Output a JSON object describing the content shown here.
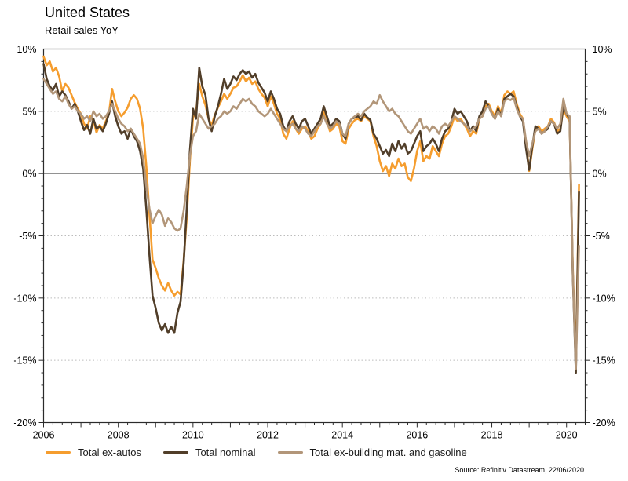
{
  "header": {
    "title": "United States",
    "subtitle": "Retail sales YoY"
  },
  "source": "Source: Refinitiv Datastream, 22/06/2020",
  "colors": {
    "ex_autos": "#F59D2E",
    "nominal": "#513E29",
    "ex_building": "#B29679",
    "grid": "#BCBCBC",
    "zero_line": "#6E6E6E",
    "axis": "#2B2B2B",
    "tick_text": "#000000"
  },
  "chart_data": {
    "type": "line",
    "title": "United States",
    "subtitle": "Retail sales YoY",
    "x_start": 2006.0,
    "x_step_months": 1,
    "xlim": [
      2006,
      2020.5
    ],
    "ylim": [
      -20,
      10
    ],
    "grid": "horizontal dotted at 5,-5,-10,-15; solid line at 0",
    "legend_position": "bottom-left",
    "yticks": [
      10,
      5,
      0,
      -5,
      -10,
      -15,
      -20
    ],
    "ytick_labels": [
      "10%",
      "5%",
      "0%",
      "-5%",
      "-10%",
      "-15%",
      "-20%"
    ],
    "xtick_label_years": [
      2006,
      2008,
      2010,
      2012,
      2014,
      2016,
      2018,
      2020
    ],
    "xtick_labels": [
      "2006",
      "2008",
      "2010",
      "2012",
      "2014",
      "2016",
      "2018",
      "2020"
    ],
    "series": [
      {
        "name": "Total ex-autos",
        "color": "#F59D2E",
        "values": [
          9.4,
          8.7,
          9.0,
          8.2,
          8.5,
          7.8,
          6.6,
          7.2,
          6.9,
          6.3,
          5.7,
          5.2,
          4.8,
          4.0,
          3.6,
          4.6,
          4.3,
          3.3,
          3.9,
          3.6,
          4.2,
          4.8,
          6.8,
          5.8,
          5.0,
          4.6,
          4.9,
          5.3,
          6.0,
          6.3,
          6.0,
          5.2,
          3.6,
          0.6,
          -3.2,
          -6.9,
          -7.6,
          -8.4,
          -9.0,
          -9.4,
          -8.8,
          -9.4,
          -9.8,
          -9.5,
          -9.7,
          -7.0,
          -3.5,
          1.0,
          4.5,
          5.0,
          7.2,
          6.2,
          5.5,
          4.4,
          3.9,
          4.7,
          5.3,
          5.8,
          6.4,
          6.0,
          6.4,
          6.9,
          7.0,
          7.4,
          7.9,
          7.4,
          7.7,
          7.2,
          7.4,
          6.8,
          6.4,
          6.1,
          5.4,
          6.2,
          5.6,
          4.8,
          4.4,
          3.2,
          2.8,
          3.6,
          4.2,
          3.6,
          3.2,
          3.6,
          3.8,
          3.4,
          2.8,
          3.0,
          3.6,
          4.0,
          5.0,
          4.2,
          3.4,
          3.6,
          4.0,
          3.8,
          2.6,
          2.4,
          3.6,
          4.0,
          4.3,
          4.4,
          4.2,
          4.6,
          4.4,
          4.2,
          3.0,
          2.2,
          1.0,
          0.2,
          0.6,
          -0.2,
          0.8,
          0.4,
          1.2,
          0.6,
          0.8,
          -0.3,
          -0.6,
          0.4,
          1.8,
          2.6,
          1.0,
          1.4,
          1.2,
          2.2,
          1.8,
          1.4,
          2.4,
          3.0,
          3.2,
          3.8,
          4.6,
          4.2,
          4.4,
          4.0,
          3.6,
          3.0,
          3.4,
          3.2,
          4.4,
          4.6,
          5.4,
          5.6,
          5.0,
          4.6,
          5.4,
          4.8,
          6.3,
          6.6,
          6.4,
          6.6,
          5.6,
          4.8,
          4.4,
          2.4,
          0.2,
          2.0,
          3.6,
          3.8,
          3.4,
          3.6,
          3.8,
          4.4,
          4.1,
          3.4,
          3.6,
          5.2,
          4.6,
          4.2,
          -7.5,
          -15.3,
          -0.9
        ]
      },
      {
        "name": "Total nominal",
        "color": "#513E29",
        "values": [
          8.8,
          7.6,
          7.0,
          6.7,
          7.2,
          6.2,
          6.6,
          6.3,
          5.8,
          5.2,
          5.6,
          5.0,
          4.2,
          3.5,
          3.9,
          3.2,
          4.4,
          3.6,
          3.8,
          3.4,
          4.0,
          4.8,
          5.8,
          4.6,
          3.8,
          3.2,
          3.4,
          2.8,
          3.6,
          3.0,
          2.6,
          1.8,
          0.4,
          -2.8,
          -6.5,
          -9.8,
          -10.8,
          -12.0,
          -12.6,
          -12.1,
          -12.8,
          -12.3,
          -12.8,
          -11.2,
          -10.3,
          -7.2,
          -2.8,
          1.8,
          5.2,
          4.4,
          8.5,
          7.0,
          6.3,
          4.4,
          3.4,
          4.6,
          5.4,
          6.4,
          7.6,
          6.8,
          7.2,
          7.8,
          7.5,
          8.0,
          8.3,
          8.0,
          8.2,
          7.7,
          8.0,
          7.3,
          6.9,
          6.5,
          5.8,
          6.6,
          6.0,
          5.2,
          4.8,
          3.8,
          3.4,
          4.2,
          4.6,
          4.0,
          3.6,
          4.2,
          4.4,
          3.8,
          3.2,
          3.6,
          4.0,
          4.4,
          5.4,
          4.6,
          3.8,
          4.0,
          4.4,
          4.2,
          3.2,
          2.8,
          4.0,
          4.4,
          4.5,
          4.6,
          4.3,
          4.8,
          4.5,
          4.3,
          3.2,
          2.8,
          2.2,
          1.6,
          1.9,
          1.4,
          2.4,
          1.8,
          2.6,
          2.0,
          2.4,
          1.6,
          1.8,
          2.4,
          3.0,
          3.4,
          1.8,
          2.2,
          2.4,
          2.8,
          2.4,
          1.8,
          2.8,
          3.4,
          3.6,
          4.2,
          5.2,
          4.8,
          5.0,
          4.6,
          4.2,
          3.4,
          3.8,
          3.4,
          4.6,
          5.0,
          5.8,
          5.4,
          4.8,
          4.4,
          5.2,
          4.6,
          6.0,
          6.2,
          6.4,
          6.2,
          5.4,
          4.6,
          4.2,
          2.0,
          0.3,
          2.2,
          3.8,
          3.6,
          3.2,
          3.4,
          3.6,
          4.2,
          4.0,
          3.2,
          3.4,
          5.5,
          4.8,
          4.4,
          -8.0,
          -16.0,
          -1.5
        ]
      },
      {
        "name": "Total ex-building mat. and gasoline",
        "color": "#B29679",
        "values": [
          7.6,
          7.2,
          6.8,
          6.4,
          6.6,
          6.0,
          5.8,
          6.2,
          5.6,
          5.2,
          5.4,
          5.0,
          4.8,
          4.4,
          4.6,
          4.2,
          5.0,
          4.6,
          4.8,
          4.4,
          4.6,
          5.0,
          5.6,
          5.0,
          4.4,
          4.0,
          3.8,
          3.4,
          3.6,
          3.2,
          2.8,
          2.4,
          1.2,
          -1.0,
          -2.8,
          -4.0,
          -3.4,
          -2.9,
          -3.3,
          -4.2,
          -3.6,
          -3.9,
          -4.4,
          -4.6,
          -4.4,
          -3.0,
          -1.0,
          1.4,
          3.0,
          3.4,
          4.8,
          4.4,
          4.0,
          3.6,
          3.8,
          4.0,
          4.4,
          4.6,
          5.0,
          4.8,
          5.0,
          5.4,
          5.2,
          5.6,
          6.0,
          5.8,
          6.0,
          5.6,
          5.4,
          5.0,
          4.8,
          4.6,
          4.8,
          5.2,
          4.8,
          4.4,
          4.0,
          3.6,
          3.4,
          3.8,
          4.0,
          3.6,
          3.4,
          3.8,
          3.6,
          3.2,
          3.0,
          3.4,
          3.8,
          4.0,
          4.6,
          4.0,
          3.6,
          3.8,
          4.2,
          4.0,
          3.2,
          3.0,
          4.0,
          4.4,
          4.6,
          4.8,
          4.6,
          5.0,
          5.2,
          5.4,
          5.8,
          5.6,
          6.3,
          5.8,
          5.4,
          5.0,
          5.2,
          4.8,
          4.6,
          4.2,
          3.8,
          3.4,
          3.2,
          3.6,
          4.0,
          4.4,
          3.6,
          3.8,
          3.4,
          3.8,
          3.6,
          3.2,
          3.8,
          4.0,
          3.8,
          4.2,
          4.6,
          4.4,
          4.2,
          4.0,
          3.8,
          3.4,
          3.6,
          3.8,
          4.4,
          4.6,
          5.2,
          5.4,
          4.8,
          4.4,
          5.0,
          4.6,
          5.8,
          6.0,
          5.9,
          6.1,
          5.2,
          4.6,
          4.4,
          2.6,
          1.4,
          2.4,
          3.4,
          3.6,
          3.2,
          3.4,
          3.8,
          4.2,
          4.0,
          3.6,
          4.0,
          6.0,
          4.8,
          4.6,
          -7.8,
          -15.7,
          -5.8
        ]
      }
    ]
  }
}
